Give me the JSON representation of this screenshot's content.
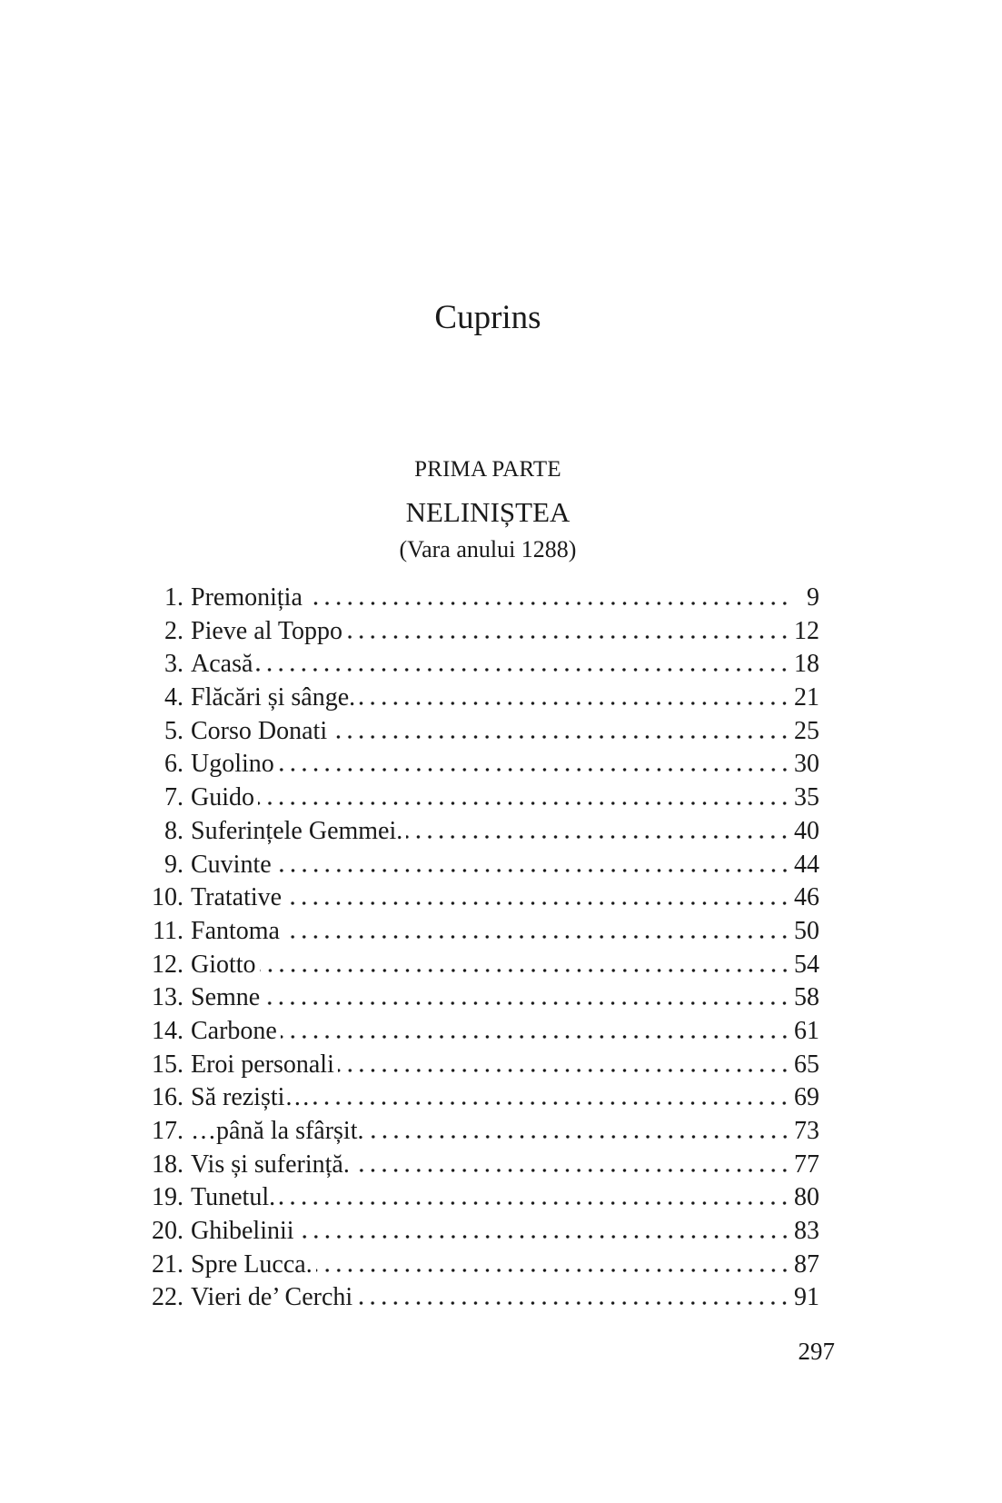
{
  "heading": "Cuprins",
  "part": {
    "label": "PRIMA PARTE",
    "title": "NELINIȘTEA",
    "period": "(Vara anului 1288)"
  },
  "entries": [
    {
      "num": "1.",
      "title": "Premoniția",
      "page": "9"
    },
    {
      "num": "2.",
      "title": "Pieve al Toppo",
      "page": "12"
    },
    {
      "num": "3.",
      "title": "Acasă",
      "page": "18"
    },
    {
      "num": "4.",
      "title": "Flăcări și sânge.",
      "page": "21"
    },
    {
      "num": "5.",
      "title": "Corso Donati",
      "page": "25"
    },
    {
      "num": "6.",
      "title": "Ugolino",
      "page": "30"
    },
    {
      "num": "7.",
      "title": "Guido",
      "page": "35"
    },
    {
      "num": "8.",
      "title": "Suferințele Gemmei.",
      "page": "40"
    },
    {
      "num": "9.",
      "title": "Cuvinte",
      "page": "44"
    },
    {
      "num": "10.",
      "title": "Tratative",
      "page": "46"
    },
    {
      "num": "11.",
      "title": "Fantoma",
      "page": "50"
    },
    {
      "num": "12.",
      "title": "Giotto",
      "page": "54"
    },
    {
      "num": "13.",
      "title": "Semne",
      "page": "58"
    },
    {
      "num": "14.",
      "title": "Carbone",
      "page": "61"
    },
    {
      "num": "15.",
      "title": "Eroi personali",
      "page": "65"
    },
    {
      "num": "16.",
      "title": "Să reziști…",
      "page": "69"
    },
    {
      "num": "17.",
      "title": "…până la sfârșit.",
      "page": "73"
    },
    {
      "num": "18.",
      "title": "Vis și suferință.",
      "page": "77"
    },
    {
      "num": "19.",
      "title": "Tunetul.",
      "page": "80"
    },
    {
      "num": "20.",
      "title": "Ghibelinii",
      "page": "83"
    },
    {
      "num": "21.",
      "title": "Spre Lucca.",
      "page": "87"
    },
    {
      "num": "22.",
      "title": "Vieri de’ Cerchi",
      "page": "91"
    }
  ],
  "page_number": "297"
}
